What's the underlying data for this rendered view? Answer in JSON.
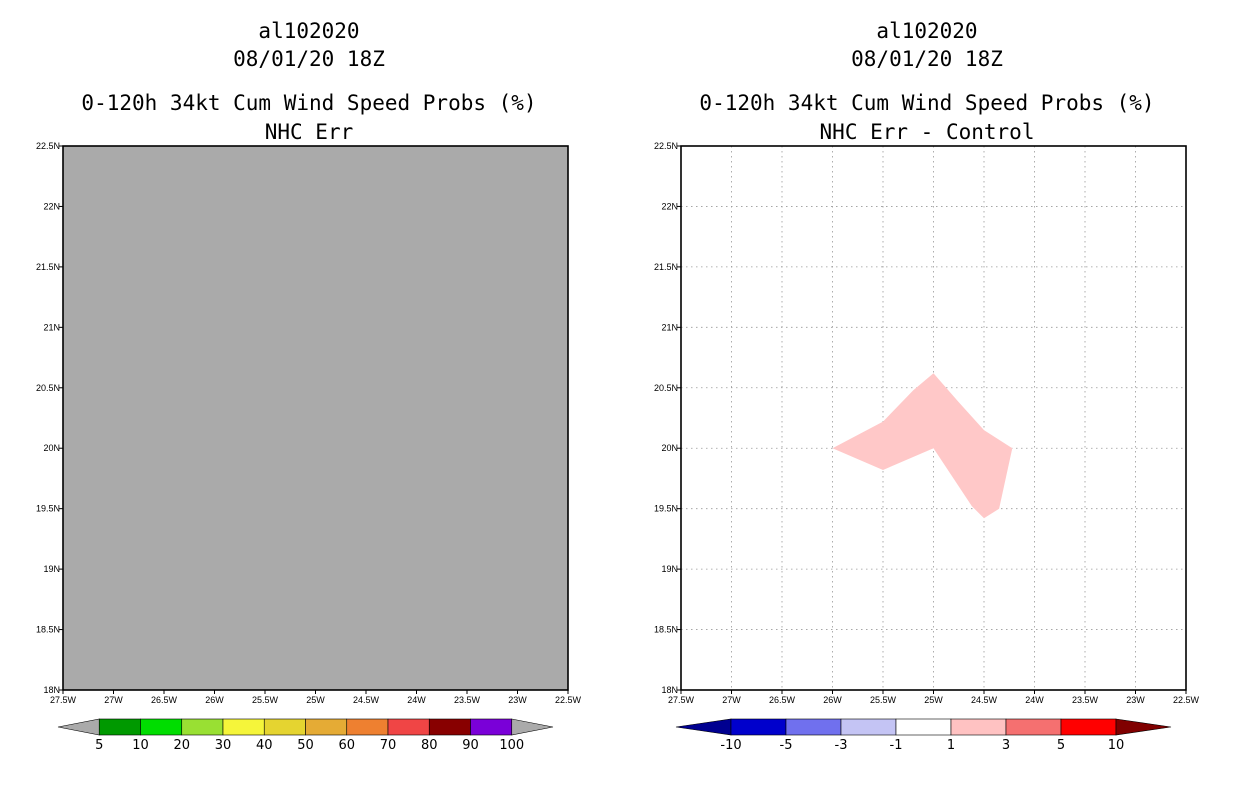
{
  "chart_data": [
    {
      "type": "heatmap",
      "title_lines": [
        "al102020",
        "08/01/20 18Z",
        "0-120h 34kt Cum Wind Speed Probs (%)",
        "NHC Err"
      ],
      "xlabel": "",
      "ylabel": "",
      "xlim": [
        -27.5,
        -22.5
      ],
      "ylim": [
        18,
        22.5
      ],
      "x_ticks": [
        -27.5,
        -27,
        -26.5,
        -26,
        -25.5,
        -25,
        -24.5,
        -24,
        -23.5,
        -23,
        -22.5
      ],
      "x_tick_labels": [
        "27.5W",
        "27W",
        "26.5W",
        "26W",
        "25.5W",
        "25W",
        "24.5W",
        "24W",
        "23.5W",
        "23W",
        "22.5W"
      ],
      "y_ticks": [
        18,
        18.5,
        19,
        19.5,
        20,
        20.5,
        21,
        21.5,
        22,
        22.5
      ],
      "y_tick_labels": [
        "18N",
        "18.5N",
        "19N",
        "19.5N",
        "20N",
        "20.5N",
        "21N",
        "21.5N",
        "22N",
        "22.5N"
      ],
      "grid": false,
      "background_color": "#aaaaaa",
      "field": "uniform below 5%",
      "colorbar": {
        "labels": [
          "5",
          "10",
          "20",
          "30",
          "40",
          "50",
          "60",
          "70",
          "80",
          "90",
          "100"
        ],
        "colors": [
          "#009900",
          "#00dd00",
          "#99e033",
          "#f5f53a",
          "#e5d430",
          "#e5ab35",
          "#ee8030",
          "#f04545",
          "#880000",
          "#7a00d8"
        ],
        "end_color_low": "#aaaaaa",
        "end_color_high": "#aaaaaa"
      }
    },
    {
      "type": "heatmap",
      "title_lines": [
        "al102020",
        "08/01/20 18Z",
        "0-120h 34kt Cum Wind Speed Probs (%)",
        "NHC Err - Control"
      ],
      "xlabel": "",
      "ylabel": "",
      "xlim": [
        -27.5,
        -22.5
      ],
      "ylim": [
        18,
        22.5
      ],
      "x_ticks": [
        -27.5,
        -27,
        -26.5,
        -26,
        -25.5,
        -25,
        -24.5,
        -24,
        -23.5,
        -23,
        -22.5
      ],
      "x_tick_labels": [
        "27.5W",
        "27W",
        "26.5W",
        "26W",
        "25.5W",
        "25W",
        "24.5W",
        "24W",
        "23.5W",
        "23W",
        "22.5W"
      ],
      "y_ticks": [
        18,
        18.5,
        19,
        19.5,
        20,
        20.5,
        21,
        21.5,
        22,
        22.5
      ],
      "y_tick_labels": [
        "18N",
        "18.5N",
        "19N",
        "19.5N",
        "20N",
        "20.5N",
        "21N",
        "21.5N",
        "22N",
        "22.5N"
      ],
      "grid": true,
      "background_color": "#ffffff",
      "regions": [
        {
          "name": "difference-1-to-3-region",
          "range_label": "1 to 3",
          "color": "#ffc8c8",
          "polygon_lonlat": [
            [
              -26,
              20
            ],
            [
              -25.5,
              20.22
            ],
            [
              -25.2,
              20.48
            ],
            [
              -25,
              20.62
            ],
            [
              -24.75,
              20.38
            ],
            [
              -24.5,
              20.15
            ],
            [
              -24.22,
              20
            ],
            [
              -24.35,
              19.5
            ],
            [
              -24.5,
              19.42
            ],
            [
              -24.62,
              19.52
            ],
            [
              -25,
              20
            ],
            [
              -25.5,
              19.82
            ]
          ]
        }
      ],
      "colorbar": {
        "labels": [
          "-10",
          "-5",
          "-3",
          "-1",
          "1",
          "3",
          "5",
          "10"
        ],
        "colors": [
          "#0000cc",
          "#7070ee",
          "#c4c4f4",
          "#ffffff",
          "#ffc2c2",
          "#f57070",
          "#ff0000"
        ],
        "end_color_low": "#000090",
        "end_color_high": "#800000"
      }
    }
  ]
}
